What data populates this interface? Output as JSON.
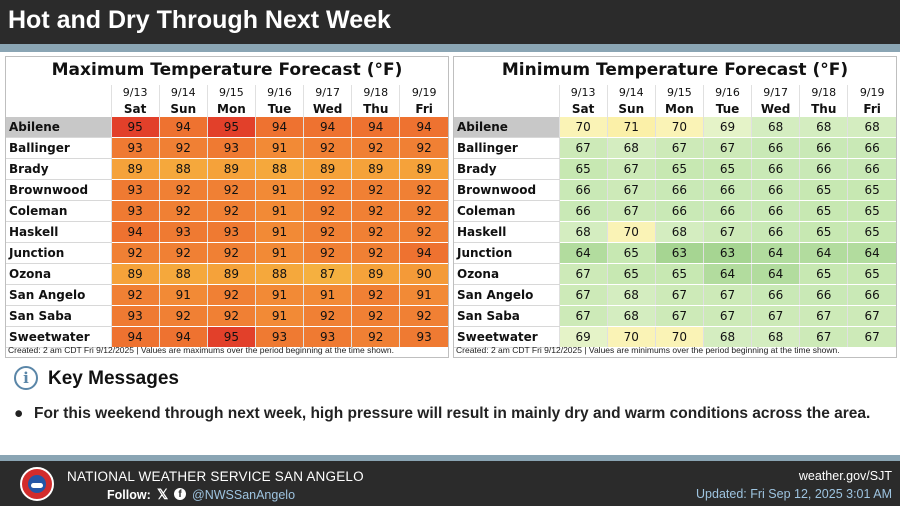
{
  "header": {
    "title": "Hot and Dry Through Next Week"
  },
  "days": {
    "dates": [
      "9/13",
      "9/14",
      "9/15",
      "9/16",
      "9/17",
      "9/18",
      "9/19"
    ],
    "dows": [
      "Sat",
      "Sun",
      "Mon",
      "Tue",
      "Wed",
      "Thu",
      "Fri"
    ]
  },
  "max_table": {
    "title": "Maximum Temperature Forecast (°F)",
    "footnote": "Created: 2 am CDT Fri 9/12/2025  |  Values are maximums over the period beginning at the time shown.",
    "rows": [
      {
        "city": "Abilene",
        "values": [
          95,
          94,
          95,
          94,
          94,
          94,
          94
        ]
      },
      {
        "city": "Ballinger",
        "values": [
          93,
          92,
          93,
          91,
          92,
          92,
          92
        ]
      },
      {
        "city": "Brady",
        "values": [
          89,
          88,
          89,
          88,
          89,
          89,
          89
        ]
      },
      {
        "city": "Brownwood",
        "values": [
          93,
          92,
          92,
          91,
          92,
          92,
          92
        ]
      },
      {
        "city": "Coleman",
        "values": [
          93,
          92,
          92,
          91,
          92,
          92,
          92
        ]
      },
      {
        "city": "Haskell",
        "values": [
          94,
          93,
          93,
          91,
          92,
          92,
          92
        ]
      },
      {
        "city": "Junction",
        "values": [
          92,
          92,
          92,
          91,
          92,
          92,
          94
        ]
      },
      {
        "city": "Ozona",
        "values": [
          89,
          88,
          89,
          88,
          87,
          89,
          90
        ]
      },
      {
        "city": "San Angelo",
        "values": [
          92,
          91,
          92,
          91,
          91,
          92,
          91
        ]
      },
      {
        "city": "San Saba",
        "values": [
          93,
          92,
          92,
          91,
          92,
          92,
          92
        ]
      },
      {
        "city": "Sweetwater",
        "values": [
          94,
          94,
          95,
          93,
          93,
          92,
          93
        ]
      }
    ]
  },
  "min_table": {
    "title": "Minimum Temperature Forecast (°F)",
    "footnote": "Created: 2 am CDT Fri 9/12/2025  |  Values are minimums over the period beginning at the time shown.",
    "rows": [
      {
        "city": "Abilene",
        "values": [
          70,
          71,
          70,
          69,
          68,
          68,
          68
        ]
      },
      {
        "city": "Ballinger",
        "values": [
          67,
          68,
          67,
          67,
          66,
          66,
          66
        ]
      },
      {
        "city": "Brady",
        "values": [
          65,
          67,
          65,
          65,
          66,
          66,
          66
        ]
      },
      {
        "city": "Brownwood",
        "values": [
          66,
          67,
          66,
          66,
          66,
          65,
          65
        ]
      },
      {
        "city": "Coleman",
        "values": [
          66,
          67,
          66,
          66,
          66,
          65,
          65
        ]
      },
      {
        "city": "Haskell",
        "values": [
          68,
          70,
          68,
          67,
          66,
          65,
          65
        ]
      },
      {
        "city": "Junction",
        "values": [
          64,
          65,
          63,
          63,
          64,
          64,
          64
        ]
      },
      {
        "city": "Ozona",
        "values": [
          67,
          65,
          65,
          64,
          64,
          65,
          65
        ]
      },
      {
        "city": "San Angelo",
        "values": [
          67,
          68,
          67,
          67,
          66,
          66,
          66
        ]
      },
      {
        "city": "San Saba",
        "values": [
          67,
          68,
          67,
          67,
          67,
          67,
          67
        ]
      },
      {
        "city": "Sweetwater",
        "values": [
          69,
          70,
          70,
          68,
          68,
          67,
          67
        ]
      }
    ]
  },
  "colors": {
    "max_scale": {
      "87": "#f5b040",
      "88": "#f5a83c",
      "89": "#f5a23a",
      "90": "#f49a38",
      "91": "#f28a36",
      "92": "#f08034",
      "93": "#ef7a32",
      "94": "#ee7230",
      "95": "#e2402a"
    },
    "min_scale": {
      "63": "#a6d592",
      "64": "#b2dc9e",
      "65": "#c7e8b2",
      "66": "#c9e9b6",
      "67": "#cdeab8",
      "68": "#d4edc0",
      "69": "#e5f3c8",
      "70": "#faf3b6",
      "71": "#fbf0a8"
    }
  },
  "key_messages": {
    "icon": "info-icon",
    "title": "Key Messages",
    "bullet_symbol": "●",
    "bullet": "For this weekend through next week, high pressure will result in mainly dry and warm conditions across the area."
  },
  "footer": {
    "office": "NATIONAL WEATHER SERVICE SAN ANGELO",
    "follow_label": "Follow:",
    "x_glyph": "𝕏",
    "fb_glyph": "f",
    "handle": "@NWSSanAngelo",
    "site": "weather.gov/SJT",
    "updated": "Updated: Fri Sep 12, 2025 3:01 AM"
  }
}
